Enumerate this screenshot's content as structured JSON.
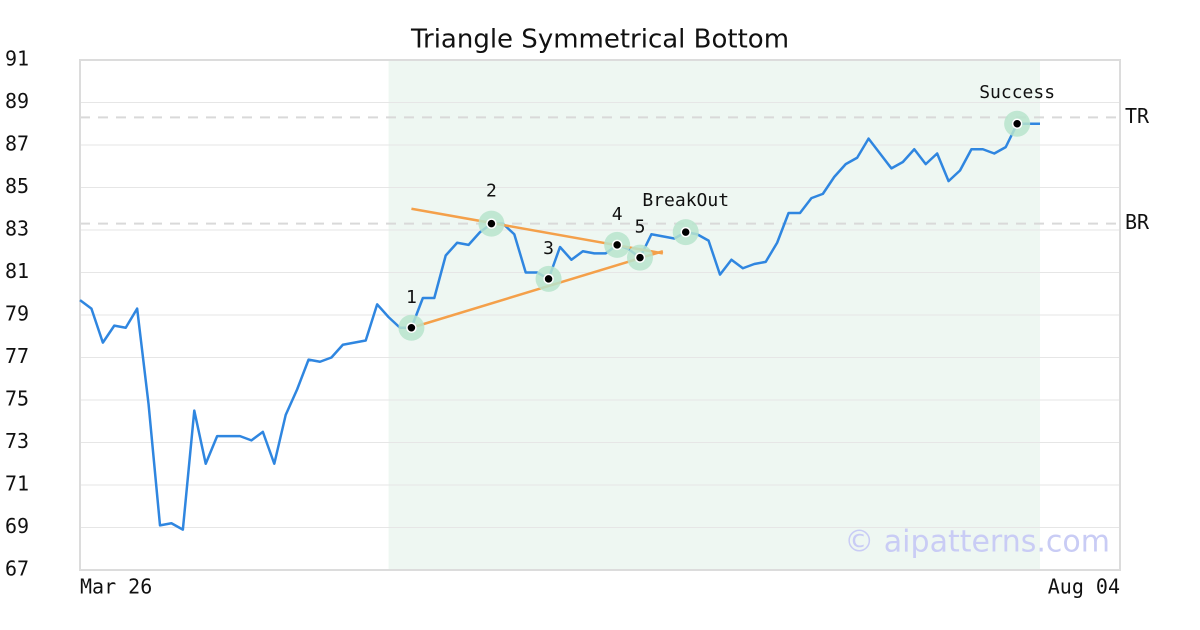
{
  "chart_data": {
    "type": "line",
    "title": "Triangle Symmetrical Bottom",
    "values": [
      79.7,
      79.3,
      77.7,
      78.5,
      78.4,
      79.3,
      74.8,
      69.1,
      69.2,
      68.9,
      74.5,
      72.0,
      73.3,
      73.3,
      73.3,
      73.1,
      73.5,
      72.0,
      74.3,
      75.5,
      76.9,
      76.8,
      77.0,
      77.6,
      77.7,
      77.8,
      79.5,
      78.9,
      78.4,
      78.4,
      79.8,
      79.8,
      81.8,
      82.4,
      82.3,
      82.9,
      83.3,
      83.3,
      82.8,
      81.0,
      81.0,
      80.7,
      82.2,
      81.6,
      82.0,
      81.9,
      81.9,
      82.3,
      82.1,
      81.7,
      82.8,
      82.7,
      82.6,
      82.9,
      82.8,
      82.5,
      80.9,
      81.6,
      81.2,
      81.4,
      81.5,
      82.4,
      83.8,
      83.8,
      84.5,
      84.7,
      85.5,
      86.1,
      86.4,
      87.3,
      86.6,
      85.9,
      86.2,
      86.8,
      86.1,
      86.6,
      85.3,
      85.8,
      86.8,
      86.8,
      86.6,
      86.9,
      88.0,
      88.0,
      88.0
    ],
    "color": "#2f86e0",
    "xlim": [
      0,
      91
    ],
    "xticks": [
      {
        "value": 0,
        "label": "Mar 26"
      },
      {
        "value": 91,
        "label": "Aug 04"
      }
    ],
    "ylim": [
      67,
      91
    ],
    "yticks": [
      67,
      69,
      71,
      73,
      75,
      77,
      79,
      81,
      83,
      85,
      87,
      89,
      91
    ],
    "grid": true,
    "highlight_range": [
      27,
      84
    ],
    "reference_lines": [
      {
        "label": "TR",
        "value": 88.3
      },
      {
        "label": "BR",
        "value": 83.3
      }
    ],
    "trend_lines": [
      {
        "color": "#f4a04a",
        "points": [
          [
            29,
            84.0
          ],
          [
            51,
            81.9
          ]
        ]
      },
      {
        "color": "#f4a04a",
        "points": [
          [
            29,
            78.4
          ],
          [
            51,
            82.0
          ]
        ]
      }
    ],
    "annotations": [
      {
        "label": "1",
        "x": 29,
        "value": 78.4
      },
      {
        "label": "2",
        "x": 36,
        "value": 83.3
      },
      {
        "label": "3",
        "x": 41,
        "value": 80.7
      },
      {
        "label": "4",
        "x": 47,
        "value": 82.3
      },
      {
        "label": "5",
        "x": 49,
        "value": 81.7
      },
      {
        "label": "BreakOut",
        "x": 53,
        "value": 82.9
      },
      {
        "label": "Success",
        "x": 82,
        "value": 88.0
      }
    ],
    "watermark": "© aipatterns.com"
  }
}
